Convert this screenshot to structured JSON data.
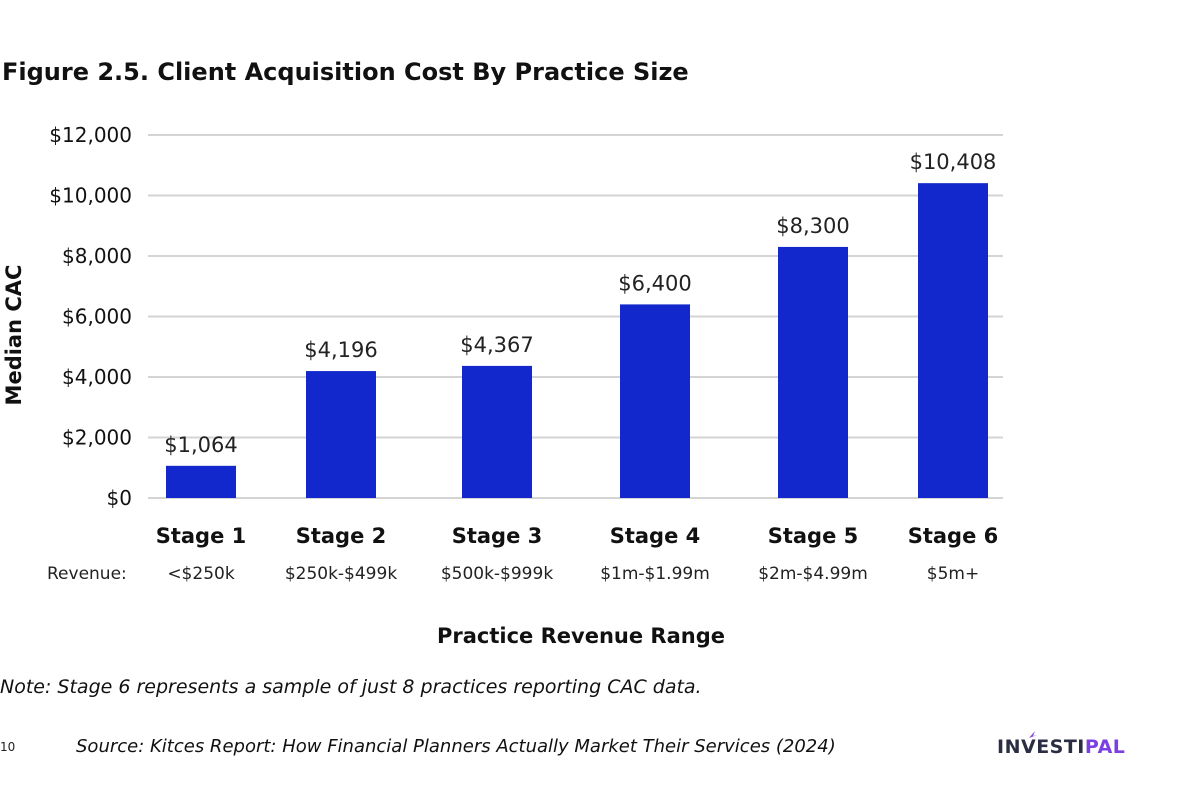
{
  "chart_data": {
    "type": "bar",
    "title": "Figure 2.5. Client Acquisition Cost By Practice Size",
    "xlabel": "Practice Revenue Range",
    "ylabel": "Median CAC",
    "categories": [
      "Stage 1",
      "Stage 2",
      "Stage 3",
      "Stage 4",
      "Stage 5",
      "Stage 6"
    ],
    "revenue_prefix": "Revenue:",
    "revenue_ranges": [
      "<$250k",
      "$250k-$499k",
      "$500k-$999k",
      "$1m-$1.99m",
      "$2m-$4.99m",
      "$5m+"
    ],
    "values": [
      1064,
      4196,
      4367,
      6400,
      8300,
      10408
    ],
    "value_labels": [
      "$1,064",
      "$4,196",
      "$4,367",
      "$6,400",
      "$8,300",
      "$10,408"
    ],
    "ylim": [
      0,
      12000
    ],
    "yticks": [
      0,
      2000,
      4000,
      6000,
      8000,
      10000,
      12000
    ],
    "ytick_labels": [
      "$0",
      "$2,000",
      "$4,000",
      "$6,000",
      "$8,000",
      "$10,000",
      "$12,000"
    ],
    "grid": true,
    "bar_color": "#1228cc"
  },
  "note": "Note: Stage 6 represents a sample of just 8 practices reporting CAC data.",
  "footer": {
    "page_number": "10",
    "source": "Source: Kitces Report: How Financial Planners Actually Market Their Services (2024)",
    "logo": {
      "part1": "INV",
      "part2": "ESTI",
      "part3": "PAL",
      "color_dark": "#2b2d42",
      "color_accent": "#7b3fe4"
    }
  },
  "colors": {
    "grid": "#d4d4d4",
    "text": "#111111"
  }
}
